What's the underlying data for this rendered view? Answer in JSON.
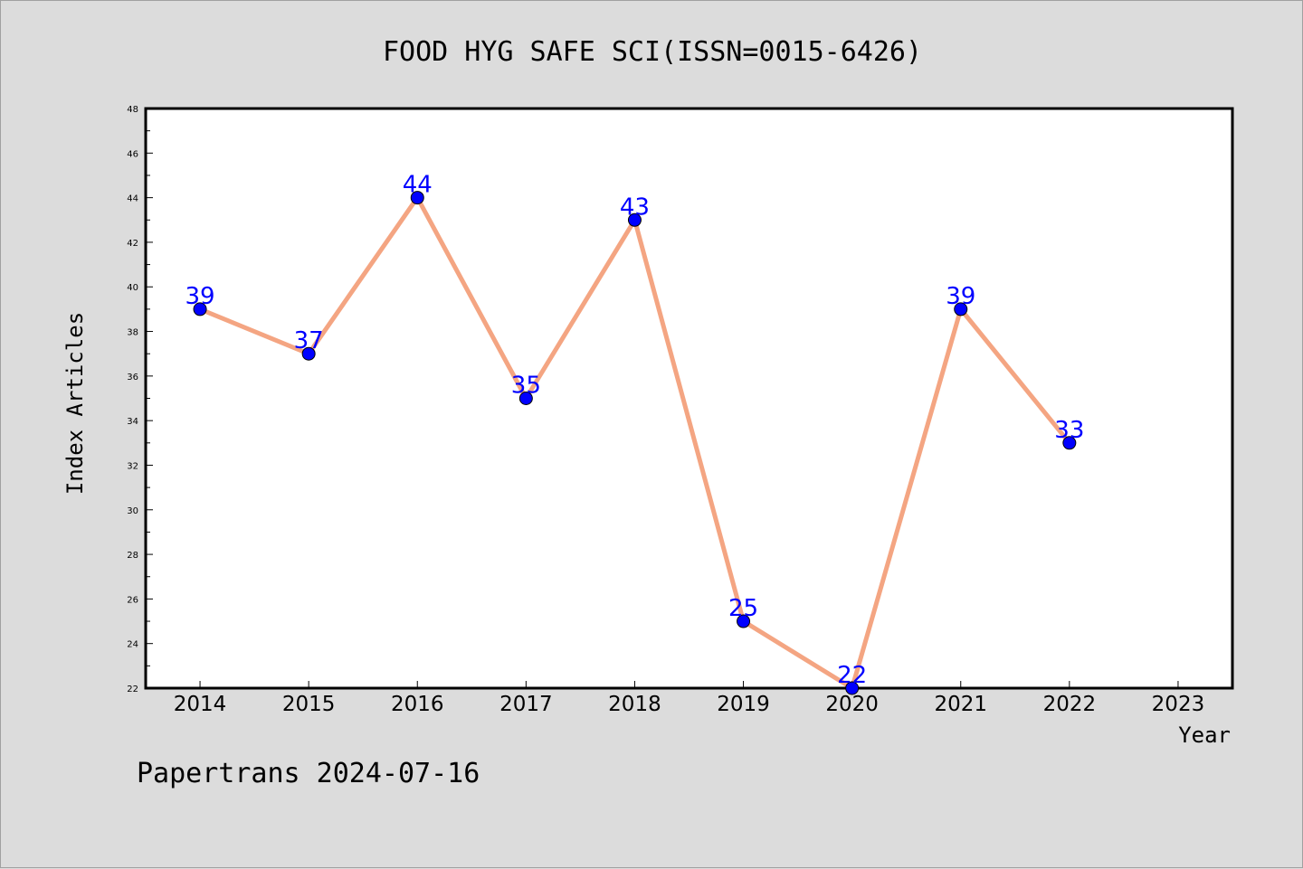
{
  "footer": {
    "text": "Papertrans 2024-07-16"
  },
  "colors": {
    "background": "#dcdcdc",
    "plot_background": "#ffffff",
    "line": "#f4a582",
    "marker": "#0000ff",
    "data_label": "#0000ff"
  },
  "chart_data": {
    "type": "line",
    "title": "FOOD HYG SAFE SCI(ISSN=0015-6426)",
    "xlabel": "Year",
    "ylabel": "Index Articles",
    "x_ticks": [
      2014,
      2015,
      2016,
      2017,
      2018,
      2019,
      2020,
      2021,
      2022,
      2023
    ],
    "x_tick_labels": [
      "2014",
      "2015",
      "2016",
      "2017",
      "2018",
      "2019",
      "2020",
      "2021",
      "2022",
      "2023"
    ],
    "y_ticks": [
      22,
      24,
      26,
      28,
      30,
      32,
      34,
      36,
      38,
      40,
      42,
      44,
      46,
      48
    ],
    "y_tick_labels": [
      "22",
      "24",
      "26",
      "28",
      "30",
      "32",
      "34",
      "36",
      "38",
      "40",
      "42",
      "44",
      "46",
      "48"
    ],
    "xlim": [
      2013.5,
      2023.5
    ],
    "ylim": [
      22,
      48
    ],
    "grid": false,
    "series": [
      {
        "x": [
          2014,
          2015,
          2016,
          2017,
          2018,
          2019,
          2020,
          2021,
          2022
        ],
        "values": [
          39,
          37,
          44,
          35,
          43,
          25,
          22,
          39,
          33
        ],
        "labels": [
          "39",
          "37",
          "44",
          "35",
          "43",
          "25",
          "22",
          "39",
          "33"
        ]
      }
    ]
  }
}
